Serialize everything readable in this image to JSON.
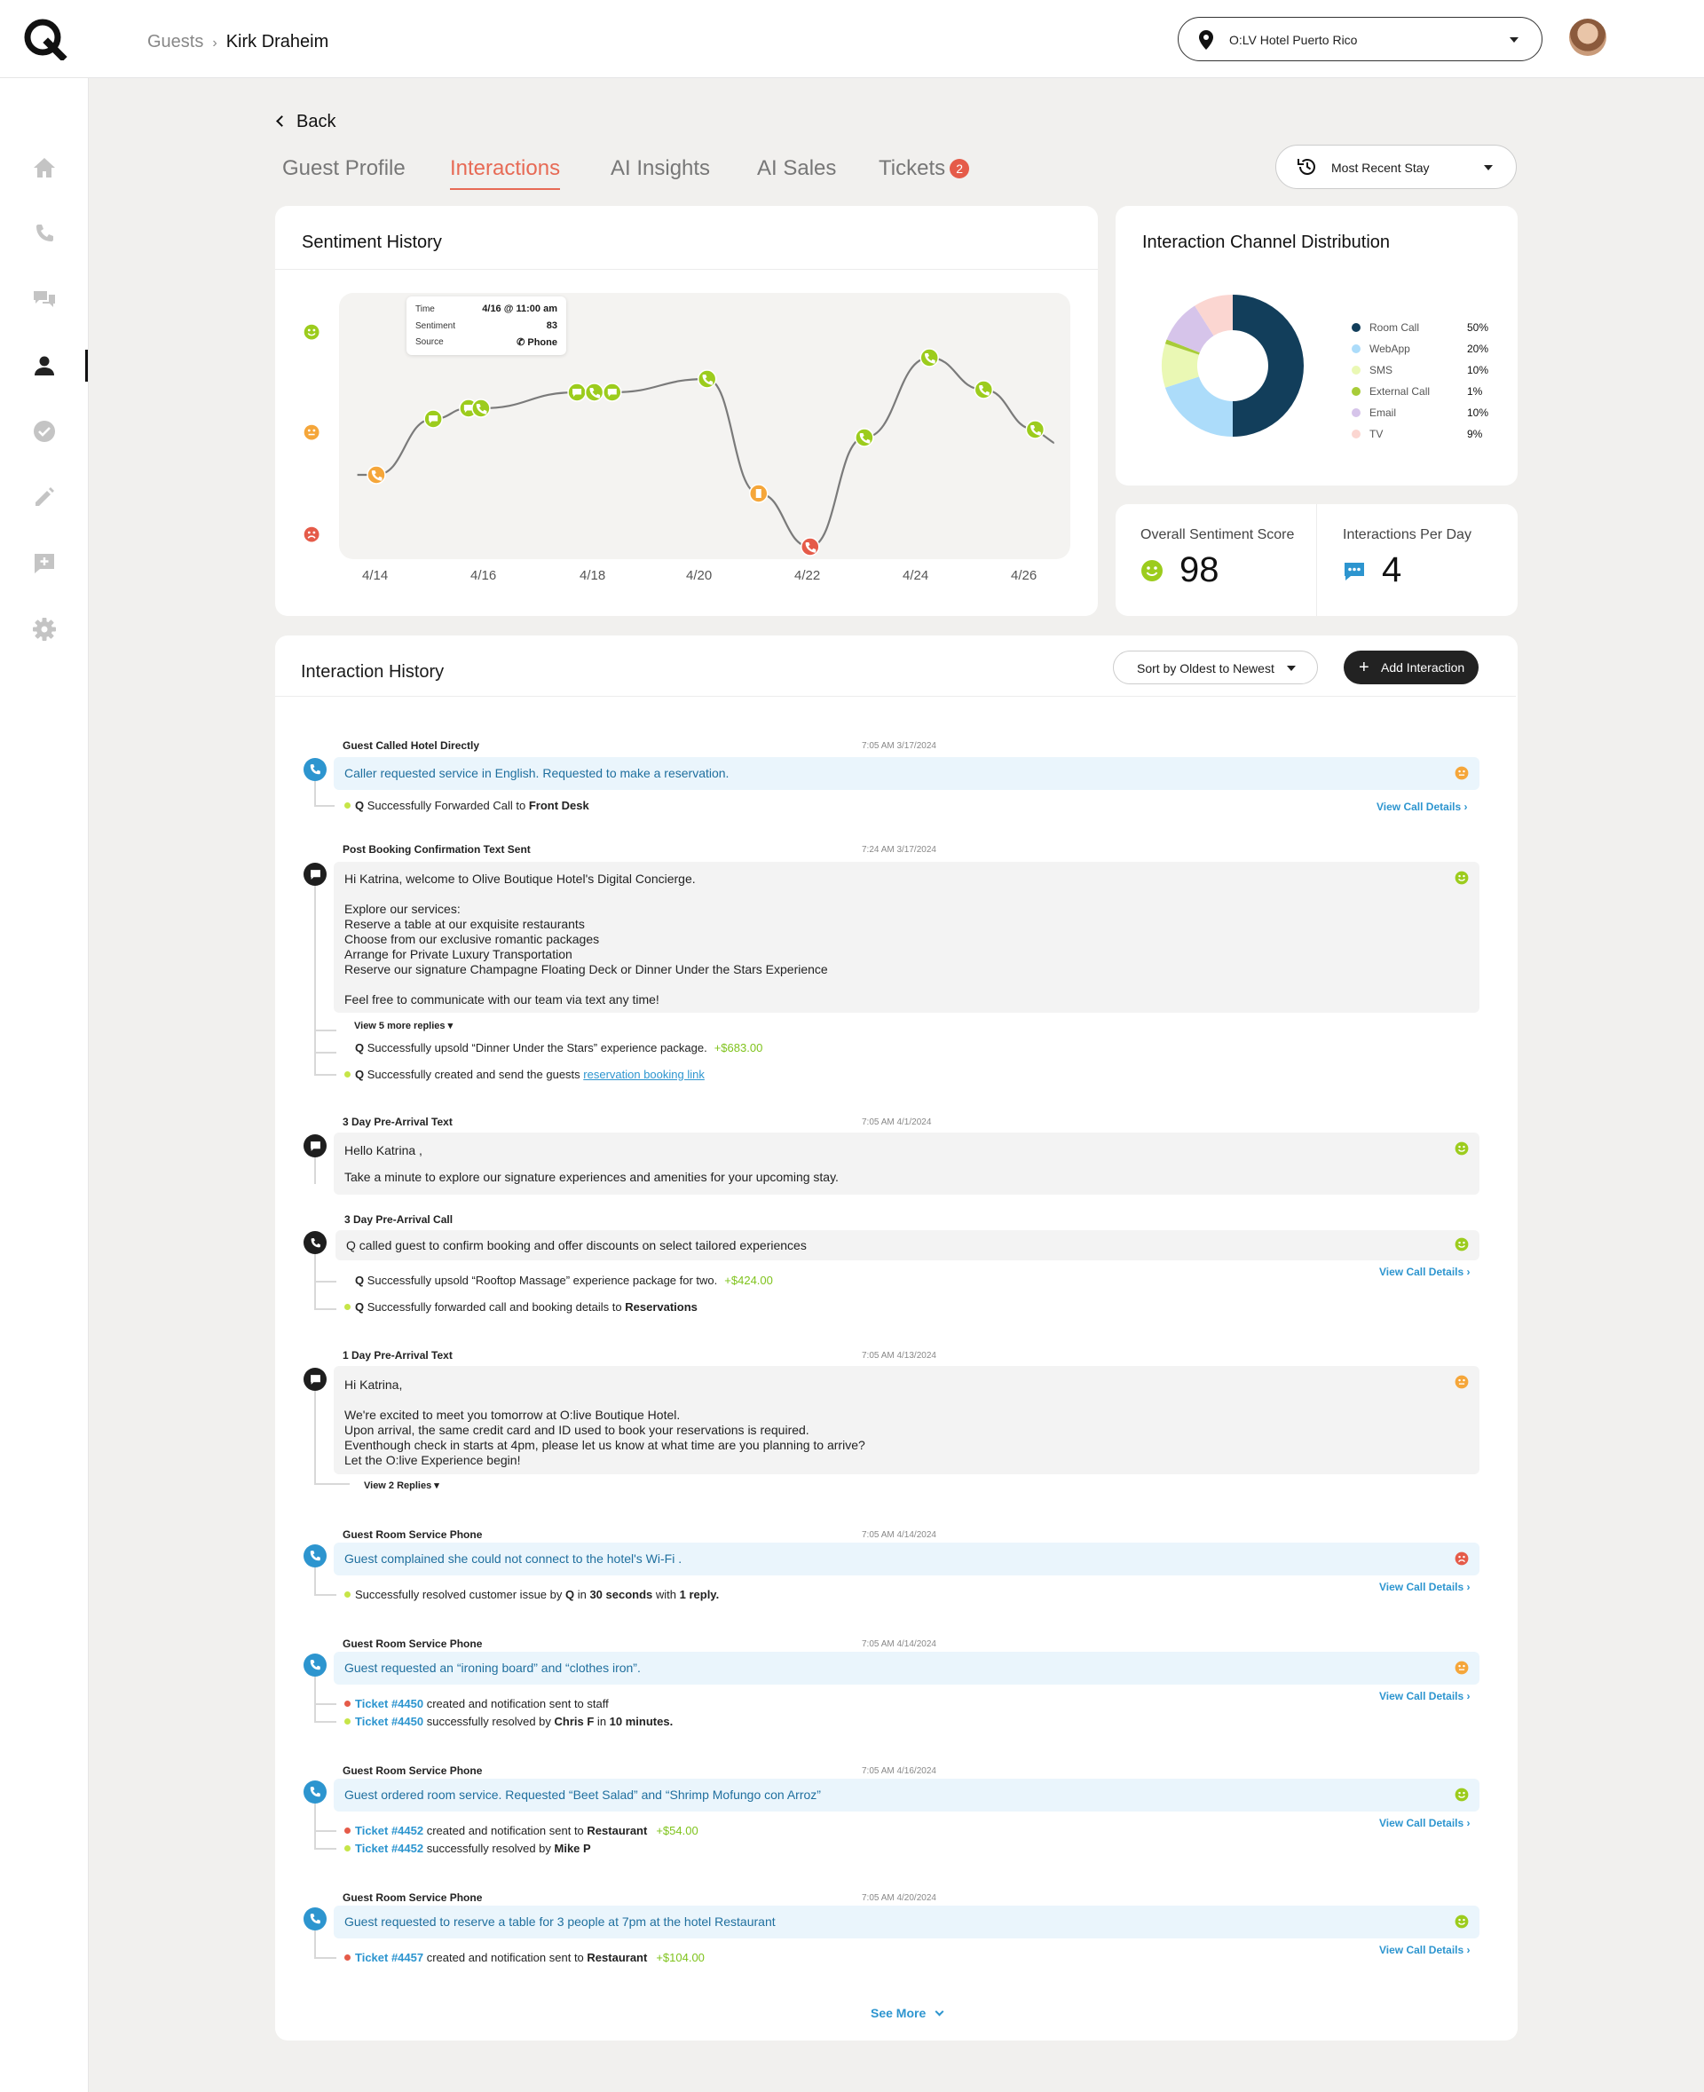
{
  "breadcrumb": {
    "parent": "Guests",
    "separator": "›",
    "current": "Kirk Draheim"
  },
  "hotel_selector": {
    "value": "O:LV Hotel Puerto Rico"
  },
  "nav": [
    "home-icon",
    "phone-icon",
    "chat-icon",
    "user-icon",
    "check-icon",
    "edit-icon",
    "feedback-icon",
    "settings-icon"
  ],
  "back_label": "Back",
  "tabs": [
    {
      "label": "Guest Profile"
    },
    {
      "label": "Interactions"
    },
    {
      "label": "AI Insights"
    },
    {
      "label": "AI Sales"
    },
    {
      "label": "Tickets",
      "badge": "2"
    }
  ],
  "stay_selector": {
    "value": "Most Recent Stay"
  },
  "sentiment": {
    "title": "Sentiment History",
    "tooltip": {
      "time_label": "Time",
      "time_value": "4/16 @ 11:00 am",
      "sentiment_label": "Sentiment",
      "sentiment_value": "83",
      "source_label": "Source",
      "source_value": "Phone"
    }
  },
  "chart_data": {
    "type": "line",
    "x_ticks": [
      "4/14",
      "4/16",
      "4/18",
      "4/20",
      "4/22",
      "4/24",
      "4/26"
    ],
    "points": [
      {
        "x": 0.0,
        "y": 50,
        "mood": "neutral",
        "channel": "phone"
      },
      {
        "x": 1.05,
        "y": 71,
        "mood": "happy",
        "channel": "chat"
      },
      {
        "x": 1.7,
        "y": 75,
        "mood": "happy",
        "channel": "chat"
      },
      {
        "x": 1.93,
        "y": 75,
        "mood": "happy",
        "channel": "phone"
      },
      {
        "x": 3.7,
        "y": 81,
        "mood": "happy",
        "channel": "chat"
      },
      {
        "x": 4.02,
        "y": 81,
        "mood": "happy",
        "channel": "phone"
      },
      {
        "x": 4.35,
        "y": 81,
        "mood": "happy",
        "channel": "chat"
      },
      {
        "x": 6.1,
        "y": 86,
        "mood": "happy",
        "channel": "phone"
      },
      {
        "x": 7.05,
        "y": 43,
        "mood": "neutral",
        "channel": "webapp"
      },
      {
        "x": 8.0,
        "y": 23,
        "mood": "sad",
        "channel": "phone"
      },
      {
        "x": 9.0,
        "y": 64,
        "mood": "happy",
        "channel": "phone"
      },
      {
        "x": 10.2,
        "y": 94,
        "mood": "happy",
        "channel": "phone"
      },
      {
        "x": 11.2,
        "y": 82,
        "mood": "happy",
        "channel": "phone"
      },
      {
        "x": 12.15,
        "y": 67,
        "mood": "happy",
        "channel": "phone"
      }
    ],
    "y_indicators": [
      "happy",
      "neutral",
      "sad"
    ]
  },
  "distribution": {
    "title": "Interaction Channel Distribution",
    "slices": [
      {
        "label": "Room Call",
        "value": 50,
        "pct": "50%",
        "color": "#123e5b"
      },
      {
        "label": "WebApp",
        "value": 20,
        "pct": "20%",
        "color": "#acdcfa"
      },
      {
        "label": "SMS",
        "value": 10,
        "pct": "10%",
        "color": "#eaf8b4"
      },
      {
        "label": "External Call",
        "value": 1,
        "pct": "1%",
        "color": "#a8cc38"
      },
      {
        "label": "Email",
        "value": 10,
        "pct": "10%",
        "color": "#d6c4ea"
      },
      {
        "label": "TV",
        "value": 9,
        "pct": "9%",
        "color": "#fbd6d1"
      }
    ]
  },
  "scores": {
    "sentiment_label": "Overall Sentiment Score",
    "sentiment_value": "98",
    "ipd_label": "Interactions Per Day",
    "ipd_value": "4"
  },
  "history": {
    "title": "Interaction History",
    "sort": "Sort by Oldest to Newest",
    "add": "Add Interaction",
    "see_more": "See More",
    "view_call": "View Call Details",
    "items": [
      {
        "title": "Guest Called Hotel Directly",
        "time": "7:05 AM 3/17/2024",
        "text": "Caller requested service in English. Requested to make a reservation.",
        "s1_q": "Q",
        "s1_a": " Successfully Forwarded Call to ",
        "s1_b": "Front Desk"
      },
      {
        "title": "Post Booking Confirmation Text Sent",
        "time": "7:24 AM 3/17/2024",
        "lines": [
          "Hi Katrina, welcome to Olive Boutique Hotel's Digital Concierge.",
          "",
          "Explore our services:",
          "Reserve a table at our exquisite restaurants",
          "Choose from our exclusive romantic packages",
          "Arrange for Private Luxury Transportation",
          "Reserve our signature Champagne Floating Deck or Dinner Under the Stars Experience",
          "",
          "Feel free to communicate with our team via text any time!"
        ],
        "more": "View 5 more replies",
        "s1_q": "Q",
        "s1_a": " Successfully upsold “Dinner Under the Stars” experience package.",
        "s1_amt": "+$683.00",
        "s2_q": "Q",
        "s2_a": " Successfully created and send the guests ",
        "s2_link": "reservation booking link"
      },
      {
        "title": "3 Day Pre-Arrival Text",
        "time": "7:05 AM 4/1/2024",
        "l1": "Hello Katrina ,",
        "l2": "Take a minute to explore our signature experiences and amenities for your upcoming stay."
      },
      {
        "title": "3 Day Pre-Arrival Call",
        "text": "Q called guest to confirm booking and offer discounts on select tailored experiences",
        "s1_q": "Q",
        "s1_a": " Successfully upsold “Rooftop Massage” experience package for two.",
        "s1_amt": "+$424.00",
        "s2_q": "Q",
        "s2_a": " Successfully forwarded call and booking details to ",
        "s2_b": "Reservations"
      },
      {
        "title": "1 Day Pre-Arrival Text",
        "time": "7:05 AM 4/13/2024",
        "lines": [
          "Hi Katrina,",
          "",
          "We're excited to meet you tomorrow at O:live Boutique Hotel.",
          "Upon arrival, the same credit card and ID used to book your reservations is required.",
          "Eventhough check in starts at 4pm, please let us know at what time are you planning to arrive?",
          "Let the O:live Experience begin!"
        ],
        "more": "View 2 Replies"
      },
      {
        "title": "Guest Room Service Phone",
        "time": "7:05 AM 4/14/2024",
        "text": "Guest complained she could not connect to the hotel's Wi-Fi .",
        "s1_a": "Successfully resolved customer issue by ",
        "s1_q": "Q",
        "s1_c": " in ",
        "s1_d": "30 seconds",
        "s1_e": " with ",
        "s1_f": "1 reply."
      },
      {
        "title": "Guest Room Service Phone",
        "time": "7:05 AM 4/14/2024",
        "text": "Guest requested an “ironing board” and “clothes iron”.",
        "s1_t": "Ticket #4450",
        "s1_a": " created and notification sent to staff",
        "s2_t": "Ticket #4450",
        "s2_a": " successfully resolved by ",
        "s2_b": "Chris F",
        "s2_c": " in ",
        "s2_d": "10 minutes."
      },
      {
        "title": "Guest Room Service Phone",
        "time": "7:05 AM 4/16/2024",
        "text": "Guest ordered room service. Requested “Beet Salad” and “Shrimp Mofungo con Arroz”",
        "s1_t": "Ticket #4452",
        "s1_a": " created and notification sent to ",
        "s1_b": "Restaurant",
        "s1_amt": "+$54.00",
        "s2_t": "Ticket #4452",
        "s2_a": "  successfully resolved by ",
        "s2_b": "Mike P"
      },
      {
        "title": "Guest Room Service Phone",
        "time": "7:05 AM 4/20/2024",
        "text": "Guest requested to reserve a table for 3 people at 7pm at the hotel Restaurant",
        "s1_t": "Ticket #4457",
        "s1_a": " created and notification sent to ",
        "s1_b": "Restaurant",
        "s1_amt": "+$104.00"
      }
    ]
  }
}
